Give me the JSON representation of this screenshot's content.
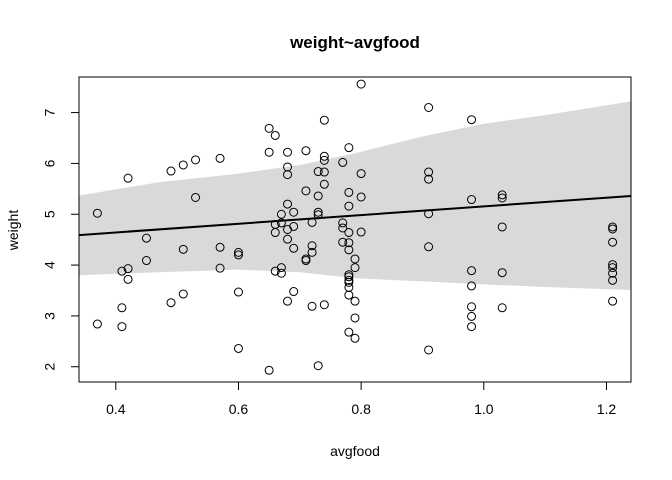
{
  "chart_data": {
    "type": "scatter",
    "title": "weight~avgfood",
    "xlabel": "avgfood",
    "ylabel": "weight",
    "xlim": [
      0.34,
      1.24
    ],
    "ylim": [
      1.7,
      7.7
    ],
    "xticks": [
      0.4,
      0.6,
      0.8,
      1.0,
      1.2
    ],
    "xtick_labels": [
      "0.4",
      "0.6",
      "0.8",
      "1.0",
      "1.2"
    ],
    "yticks": [
      2,
      3,
      4,
      5,
      6,
      7
    ],
    "ytick_labels": [
      "2",
      "3",
      "4",
      "5",
      "6",
      "7"
    ],
    "grid": false,
    "regression_line": {
      "x": [
        0.34,
        1.24
      ],
      "y": [
        4.59,
        5.36
      ]
    },
    "interval_band": {
      "x": [
        0.34,
        0.47,
        0.6,
        0.7,
        0.79,
        0.9,
        1.0,
        1.1,
        1.24
      ],
      "lower": [
        3.8,
        3.86,
        3.91,
        3.86,
        3.74,
        3.68,
        3.62,
        3.57,
        3.51
      ],
      "upper": [
        5.37,
        5.63,
        5.8,
        5.97,
        6.2,
        6.53,
        6.78,
        6.95,
        7.22
      ],
      "color": "#d9d9d9"
    },
    "points": [
      [
        0.37,
        5.02
      ],
      [
        0.37,
        2.84
      ],
      [
        0.41,
        3.88
      ],
      [
        0.41,
        3.16
      ],
      [
        0.41,
        2.79
      ],
      [
        0.42,
        5.71
      ],
      [
        0.42,
        3.93
      ],
      [
        0.42,
        3.72
      ],
      [
        0.45,
        4.53
      ],
      [
        0.45,
        4.09
      ],
      [
        0.49,
        5.85
      ],
      [
        0.49,
        3.26
      ],
      [
        0.51,
        5.97
      ],
      [
        0.51,
        4.31
      ],
      [
        0.51,
        3.43
      ],
      [
        0.53,
        6.07
      ],
      [
        0.53,
        5.33
      ],
      [
        0.57,
        6.1
      ],
      [
        0.57,
        4.35
      ],
      [
        0.57,
        3.94
      ],
      [
        0.6,
        4.25
      ],
      [
        0.6,
        4.2
      ],
      [
        0.6,
        3.47
      ],
      [
        0.6,
        2.36
      ],
      [
        0.65,
        6.69
      ],
      [
        0.65,
        6.22
      ],
      [
        0.65,
        1.93
      ],
      [
        0.66,
        6.55
      ],
      [
        0.66,
        4.8
      ],
      [
        0.66,
        4.64
      ],
      [
        0.66,
        3.88
      ],
      [
        0.67,
        5.0
      ],
      [
        0.67,
        4.83
      ],
      [
        0.67,
        3.95
      ],
      [
        0.67,
        3.84
      ],
      [
        0.68,
        6.22
      ],
      [
        0.68,
        5.93
      ],
      [
        0.68,
        5.78
      ],
      [
        0.68,
        5.2
      ],
      [
        0.68,
        4.7
      ],
      [
        0.68,
        4.51
      ],
      [
        0.68,
        3.29
      ],
      [
        0.69,
        5.04
      ],
      [
        0.69,
        4.76
      ],
      [
        0.69,
        4.33
      ],
      [
        0.69,
        3.48
      ],
      [
        0.71,
        6.25
      ],
      [
        0.71,
        5.46
      ],
      [
        0.71,
        4.12
      ],
      [
        0.71,
        4.09
      ],
      [
        0.72,
        4.84
      ],
      [
        0.72,
        4.38
      ],
      [
        0.72,
        4.25
      ],
      [
        0.72,
        3.19
      ],
      [
        0.73,
        5.84
      ],
      [
        0.73,
        5.36
      ],
      [
        0.73,
        5.04
      ],
      [
        0.73,
        4.99
      ],
      [
        0.73,
        2.02
      ],
      [
        0.74,
        6.85
      ],
      [
        0.74,
        6.14
      ],
      [
        0.74,
        6.06
      ],
      [
        0.74,
        5.83
      ],
      [
        0.74,
        5.59
      ],
      [
        0.74,
        3.22
      ],
      [
        0.77,
        6.02
      ],
      [
        0.77,
        4.83
      ],
      [
        0.77,
        4.73
      ],
      [
        0.77,
        4.45
      ],
      [
        0.78,
        6.31
      ],
      [
        0.78,
        5.43
      ],
      [
        0.78,
        5.16
      ],
      [
        0.78,
        4.64
      ],
      [
        0.78,
        4.44
      ],
      [
        0.78,
        4.3
      ],
      [
        0.78,
        3.81
      ],
      [
        0.78,
        3.77
      ],
      [
        0.78,
        3.7
      ],
      [
        0.78,
        3.66
      ],
      [
        0.78,
        3.56
      ],
      [
        0.78,
        3.41
      ],
      [
        0.78,
        2.68
      ],
      [
        0.79,
        4.12
      ],
      [
        0.79,
        3.95
      ],
      [
        0.79,
        3.29
      ],
      [
        0.79,
        2.96
      ],
      [
        0.79,
        2.56
      ],
      [
        0.8,
        7.56
      ],
      [
        0.8,
        5.8
      ],
      [
        0.8,
        5.34
      ],
      [
        0.8,
        4.65
      ],
      [
        0.91,
        7.1
      ],
      [
        0.91,
        5.83
      ],
      [
        0.91,
        5.69
      ],
      [
        0.91,
        5.01
      ],
      [
        0.91,
        4.36
      ],
      [
        0.91,
        2.33
      ],
      [
        0.98,
        6.86
      ],
      [
        0.98,
        5.29
      ],
      [
        0.98,
        3.89
      ],
      [
        0.98,
        3.59
      ],
      [
        0.98,
        3.18
      ],
      [
        0.98,
        2.99
      ],
      [
        0.98,
        2.79
      ],
      [
        1.03,
        5.38
      ],
      [
        1.03,
        5.32
      ],
      [
        1.03,
        4.75
      ],
      [
        1.03,
        3.85
      ],
      [
        1.03,
        3.16
      ],
      [
        1.21,
        4.75
      ],
      [
        1.21,
        4.71
      ],
      [
        1.21,
        4.45
      ],
      [
        1.21,
        4.01
      ],
      [
        1.21,
        3.95
      ],
      [
        1.21,
        3.84
      ],
      [
        1.21,
        3.7
      ],
      [
        1.21,
        3.29
      ]
    ]
  }
}
